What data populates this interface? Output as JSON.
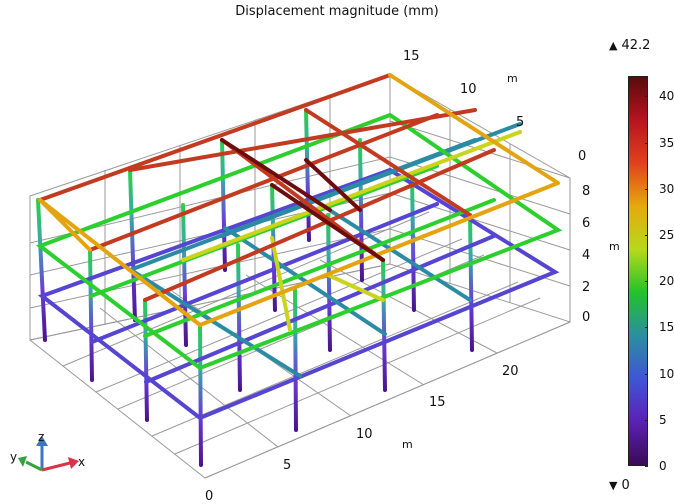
{
  "plot": {
    "title": "Displacement magnitude (mm)"
  },
  "legend": {
    "max_label": "42.2",
    "min_label": "0",
    "ticks": [
      "40",
      "35",
      "30",
      "25",
      "20",
      "15",
      "10",
      "5",
      "0"
    ],
    "colormap": [
      "#3a0a57",
      "#5b21b3",
      "#3f55d6",
      "#2a8fa0",
      "#23c22a",
      "#b6d91d",
      "#e6a90d",
      "#e0421b",
      "#b51420",
      "#5a0b0b"
    ]
  },
  "axes": {
    "x_ticks": [
      "0",
      "5",
      "10",
      "15",
      "20"
    ],
    "x_unit": "m",
    "y_ticks": [
      "0",
      "5",
      "10",
      "15"
    ],
    "y_unit": "m",
    "z_ticks": [
      "0",
      "2",
      "4",
      "6",
      "8"
    ],
    "z_unit": "m"
  },
  "triad": {
    "x": "x",
    "y": "y",
    "z": "z",
    "colors": {
      "x": "#d9334a",
      "y": "#36a33a",
      "z": "#3c74c8"
    }
  }
}
